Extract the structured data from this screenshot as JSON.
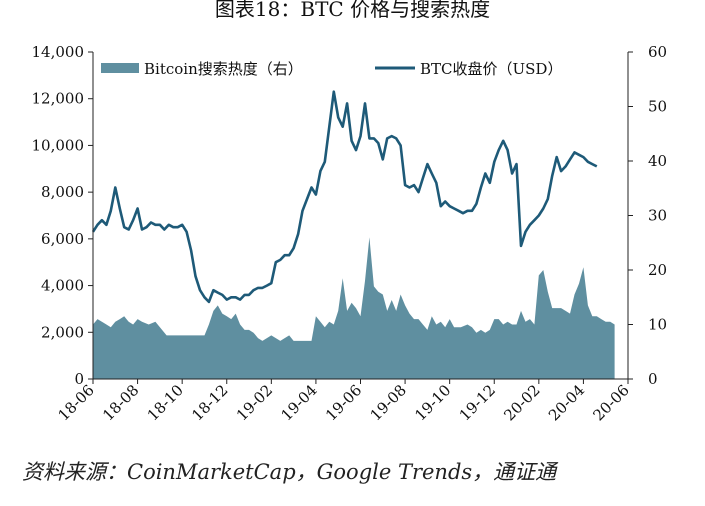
{
  "title": "图表18：BTC 价格与搜索热度",
  "source": "资料来源：CoinMarketCap，Google Trends，通证通",
  "colors": {
    "area": "#5f8fa0",
    "line": "#1e5a78",
    "axis": "#222222"
  },
  "chart_data": {
    "type": "line",
    "x_ticks": [
      "18-06",
      "18-08",
      "18-10",
      "18-12",
      "19-02",
      "19-04",
      "19-06",
      "19-08",
      "19-10",
      "19-12",
      "20-02",
      "20-04",
      "20-06"
    ],
    "y_left": {
      "ticks": [
        "0",
        "2,000",
        "4,000",
        "6,000",
        "8,000",
        "10,000",
        "12,000",
        "14,000"
      ],
      "lim": [
        0,
        14000
      ]
    },
    "y_right": {
      "ticks": [
        "0",
        "10",
        "20",
        "30",
        "40",
        "50",
        "60"
      ],
      "lim": [
        0,
        60
      ]
    },
    "xlim": [
      0,
      24
    ],
    "legend_position": "top",
    "series": [
      {
        "name": "Bitcoin搜索热度（右）",
        "kind": "area",
        "axis": "right",
        "points": [
          [
            0,
            10
          ],
          [
            0.2,
            11
          ],
          [
            0.4,
            10.5
          ],
          [
            0.6,
            10
          ],
          [
            0.8,
            9.5
          ],
          [
            1.0,
            10.5
          ],
          [
            1.2,
            11
          ],
          [
            1.4,
            11.5
          ],
          [
            1.6,
            10.5
          ],
          [
            1.8,
            10
          ],
          [
            2.0,
            11
          ],
          [
            2.2,
            10.5
          ],
          [
            2.5,
            10
          ],
          [
            2.8,
            10.5
          ],
          [
            3.0,
            9.5
          ],
          [
            3.3,
            8
          ],
          [
            3.7,
            8
          ],
          [
            4.2,
            8
          ],
          [
            4.6,
            8
          ],
          [
            5.0,
            8
          ],
          [
            5.2,
            10
          ],
          [
            5.4,
            12.5
          ],
          [
            5.6,
            13.5
          ],
          [
            5.8,
            12
          ],
          [
            6.0,
            11.5
          ],
          [
            6.2,
            11
          ],
          [
            6.4,
            12
          ],
          [
            6.6,
            10
          ],
          [
            6.8,
            9
          ],
          [
            7.0,
            9
          ],
          [
            7.2,
            8.5
          ],
          [
            7.4,
            7.5
          ],
          [
            7.6,
            7
          ],
          [
            7.8,
            7.5
          ],
          [
            8.0,
            8
          ],
          [
            8.2,
            7.5
          ],
          [
            8.4,
            7
          ],
          [
            8.6,
            7.5
          ],
          [
            8.8,
            8
          ],
          [
            9.0,
            7
          ],
          [
            9.2,
            7
          ],
          [
            9.5,
            7
          ],
          [
            9.8,
            7
          ],
          [
            10.0,
            11.5
          ],
          [
            10.2,
            10.5
          ],
          [
            10.4,
            9.5
          ],
          [
            10.6,
            10.5
          ],
          [
            10.8,
            10
          ],
          [
            11.0,
            12.5
          ],
          [
            11.2,
            18.5
          ],
          [
            11.4,
            12.5
          ],
          [
            11.6,
            14
          ],
          [
            11.8,
            13
          ],
          [
            12.0,
            11.5
          ],
          [
            12.2,
            18
          ],
          [
            12.4,
            26
          ],
          [
            12.6,
            17
          ],
          [
            12.8,
            16
          ],
          [
            13.0,
            15.5
          ],
          [
            13.2,
            12.5
          ],
          [
            13.4,
            14.5
          ],
          [
            13.6,
            12.5
          ],
          [
            13.8,
            15.5
          ],
          [
            14.0,
            13.5
          ],
          [
            14.2,
            12
          ],
          [
            14.4,
            11
          ],
          [
            14.6,
            11
          ],
          [
            14.8,
            10
          ],
          [
            15.0,
            9
          ],
          [
            15.2,
            11.5
          ],
          [
            15.4,
            10
          ],
          [
            15.6,
            10.5
          ],
          [
            15.8,
            9.5
          ],
          [
            16.0,
            11
          ],
          [
            16.2,
            9.5
          ],
          [
            16.5,
            9.5
          ],
          [
            16.8,
            10
          ],
          [
            17.0,
            9.5
          ],
          [
            17.2,
            8.5
          ],
          [
            17.4,
            9
          ],
          [
            17.6,
            8.5
          ],
          [
            17.8,
            9
          ],
          [
            18.0,
            11
          ],
          [
            18.2,
            11
          ],
          [
            18.4,
            10
          ],
          [
            18.6,
            10.5
          ],
          [
            18.8,
            10
          ],
          [
            19.0,
            10
          ],
          [
            19.2,
            12.5
          ],
          [
            19.4,
            10.5
          ],
          [
            19.6,
            11
          ],
          [
            19.8,
            10
          ],
          [
            20.0,
            19
          ],
          [
            20.2,
            20
          ],
          [
            20.4,
            16
          ],
          [
            20.6,
            13
          ],
          [
            20.8,
            13
          ],
          [
            21.0,
            13
          ],
          [
            21.2,
            12.5
          ],
          [
            21.4,
            12
          ],
          [
            21.6,
            15.5
          ],
          [
            21.8,
            17.5
          ],
          [
            22.0,
            20.5
          ],
          [
            22.2,
            13.5
          ],
          [
            22.4,
            11.5
          ],
          [
            22.6,
            11.5
          ],
          [
            22.8,
            11
          ],
          [
            23.0,
            10.5
          ],
          [
            23.2,
            10.5
          ],
          [
            23.4,
            10
          ]
        ]
      },
      {
        "name": "BTC收盘价（USD）",
        "kind": "line",
        "axis": "left",
        "points": [
          [
            0,
            6300
          ],
          [
            0.2,
            6600
          ],
          [
            0.4,
            6800
          ],
          [
            0.6,
            6600
          ],
          [
            0.8,
            7200
          ],
          [
            1.0,
            8200
          ],
          [
            1.2,
            7300
          ],
          [
            1.4,
            6500
          ],
          [
            1.6,
            6400
          ],
          [
            1.8,
            6800
          ],
          [
            2.0,
            7300
          ],
          [
            2.2,
            6400
          ],
          [
            2.4,
            6500
          ],
          [
            2.6,
            6700
          ],
          [
            2.8,
            6600
          ],
          [
            3.0,
            6600
          ],
          [
            3.2,
            6400
          ],
          [
            3.4,
            6600
          ],
          [
            3.6,
            6500
          ],
          [
            3.8,
            6500
          ],
          [
            4.0,
            6600
          ],
          [
            4.2,
            6300
          ],
          [
            4.4,
            5500
          ],
          [
            4.6,
            4400
          ],
          [
            4.8,
            3800
          ],
          [
            5.0,
            3500
          ],
          [
            5.2,
            3300
          ],
          [
            5.4,
            3800
          ],
          [
            5.6,
            3700
          ],
          [
            5.8,
            3600
          ],
          [
            6.0,
            3400
          ],
          [
            6.2,
            3500
          ],
          [
            6.4,
            3500
          ],
          [
            6.6,
            3400
          ],
          [
            6.8,
            3600
          ],
          [
            7.0,
            3600
          ],
          [
            7.2,
            3800
          ],
          [
            7.4,
            3900
          ],
          [
            7.6,
            3900
          ],
          [
            7.8,
            4000
          ],
          [
            8.0,
            4100
          ],
          [
            8.2,
            5000
          ],
          [
            8.4,
            5100
          ],
          [
            8.6,
            5300
          ],
          [
            8.8,
            5300
          ],
          [
            9.0,
            5600
          ],
          [
            9.2,
            6200
          ],
          [
            9.4,
            7200
          ],
          [
            9.6,
            7700
          ],
          [
            9.8,
            8200
          ],
          [
            10.0,
            7900
          ],
          [
            10.2,
            8900
          ],
          [
            10.4,
            9300
          ],
          [
            10.6,
            10800
          ],
          [
            10.8,
            12300
          ],
          [
            11.0,
            11200
          ],
          [
            11.2,
            10800
          ],
          [
            11.4,
            11800
          ],
          [
            11.6,
            10200
          ],
          [
            11.8,
            9800
          ],
          [
            12.0,
            10400
          ],
          [
            12.2,
            11800
          ],
          [
            12.4,
            10300
          ],
          [
            12.6,
            10300
          ],
          [
            12.8,
            10100
          ],
          [
            13.0,
            9400
          ],
          [
            13.2,
            10300
          ],
          [
            13.4,
            10400
          ],
          [
            13.6,
            10300
          ],
          [
            13.8,
            10000
          ],
          [
            14.0,
            8300
          ],
          [
            14.2,
            8200
          ],
          [
            14.4,
            8300
          ],
          [
            14.6,
            8000
          ],
          [
            14.8,
            8600
          ],
          [
            15.0,
            9200
          ],
          [
            15.2,
            8800
          ],
          [
            15.4,
            8400
          ],
          [
            15.6,
            7400
          ],
          [
            15.8,
            7600
          ],
          [
            16.0,
            7400
          ],
          [
            16.2,
            7300
          ],
          [
            16.4,
            7200
          ],
          [
            16.6,
            7100
          ],
          [
            16.8,
            7200
          ],
          [
            17.0,
            7200
          ],
          [
            17.2,
            7500
          ],
          [
            17.4,
            8200
          ],
          [
            17.6,
            8800
          ],
          [
            17.8,
            8400
          ],
          [
            18.0,
            9300
          ],
          [
            18.2,
            9800
          ],
          [
            18.4,
            10200
          ],
          [
            18.6,
            9800
          ],
          [
            18.8,
            8800
          ],
          [
            19.0,
            9200
          ],
          [
            19.2,
            5700
          ],
          [
            19.4,
            6300
          ],
          [
            19.6,
            6600
          ],
          [
            19.8,
            6800
          ],
          [
            20.0,
            7000
          ],
          [
            20.2,
            7300
          ],
          [
            20.4,
            7700
          ],
          [
            20.6,
            8700
          ],
          [
            20.8,
            9500
          ],
          [
            21.0,
            8900
          ],
          [
            21.2,
            9100
          ],
          [
            21.4,
            9400
          ],
          [
            21.6,
            9700
          ],
          [
            21.8,
            9600
          ],
          [
            22.0,
            9500
          ],
          [
            22.2,
            9300
          ],
          [
            22.4,
            9200
          ],
          [
            22.6,
            9100
          ]
        ]
      }
    ]
  }
}
